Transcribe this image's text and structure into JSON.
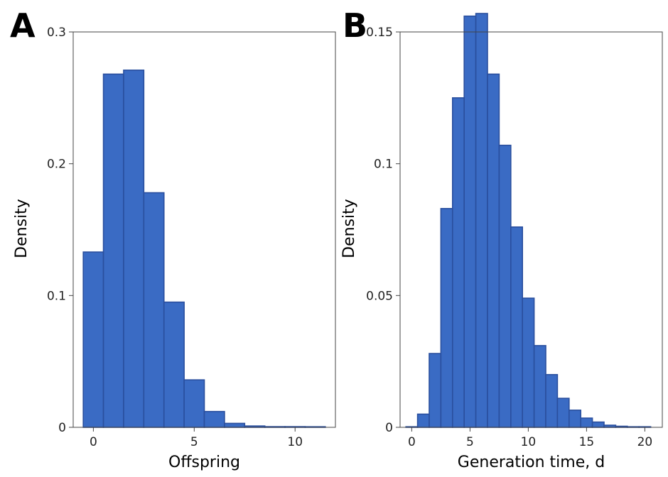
{
  "chart_data": [
    {
      "type": "bar",
      "panel_label": "A",
      "xlabel": "Offspring",
      "ylabel": "Density",
      "xlim": [
        -1,
        12
      ],
      "ylim": [
        0,
        0.3
      ],
      "xticks": [
        0,
        5,
        10
      ],
      "xtick_labels": [
        "0",
        "5",
        "10"
      ],
      "yticks": [
        0,
        0.1,
        0.2,
        0.3
      ],
      "ytick_labels": [
        "0",
        "0.1",
        "0.2",
        "0.3"
      ],
      "bin_width": 1,
      "bin_centers": [
        0,
        1,
        2,
        3,
        4,
        5,
        6,
        7,
        8,
        9,
        10,
        11
      ],
      "values": [
        0.133,
        0.268,
        0.271,
        0.178,
        0.095,
        0.036,
        0.012,
        0.003,
        0.001,
        0.0005,
        0.0005,
        0.0003
      ],
      "bar_color": "#3a6bc4",
      "grid": false
    },
    {
      "type": "bar",
      "panel_label": "B",
      "xlabel": "Generation time, d",
      "ylabel": "Density",
      "xlim": [
        -1,
        21.5
      ],
      "ylim": [
        0,
        0.15
      ],
      "xticks": [
        0,
        5,
        10,
        15,
        20
      ],
      "xtick_labels": [
        "0",
        "5",
        "10",
        "15",
        "20"
      ],
      "yticks": [
        0,
        0.05,
        0.1,
        0.15
      ],
      "ytick_labels": [
        "0",
        "0.05",
        "0.1",
        "0.15"
      ],
      "bin_width": 1,
      "bin_centers": [
        0,
        1,
        2,
        3,
        4,
        5,
        6,
        7,
        8,
        9,
        10,
        11,
        12,
        13,
        14,
        15,
        16,
        17,
        18,
        19,
        20
      ],
      "values": [
        0.0002,
        0.005,
        0.028,
        0.083,
        0.125,
        0.156,
        0.157,
        0.134,
        0.107,
        0.076,
        0.049,
        0.031,
        0.02,
        0.011,
        0.0065,
        0.0035,
        0.002,
        0.0008,
        0.0004,
        0.0002,
        0.0001
      ],
      "bar_color": "#3a6bc4",
      "grid": false
    }
  ]
}
